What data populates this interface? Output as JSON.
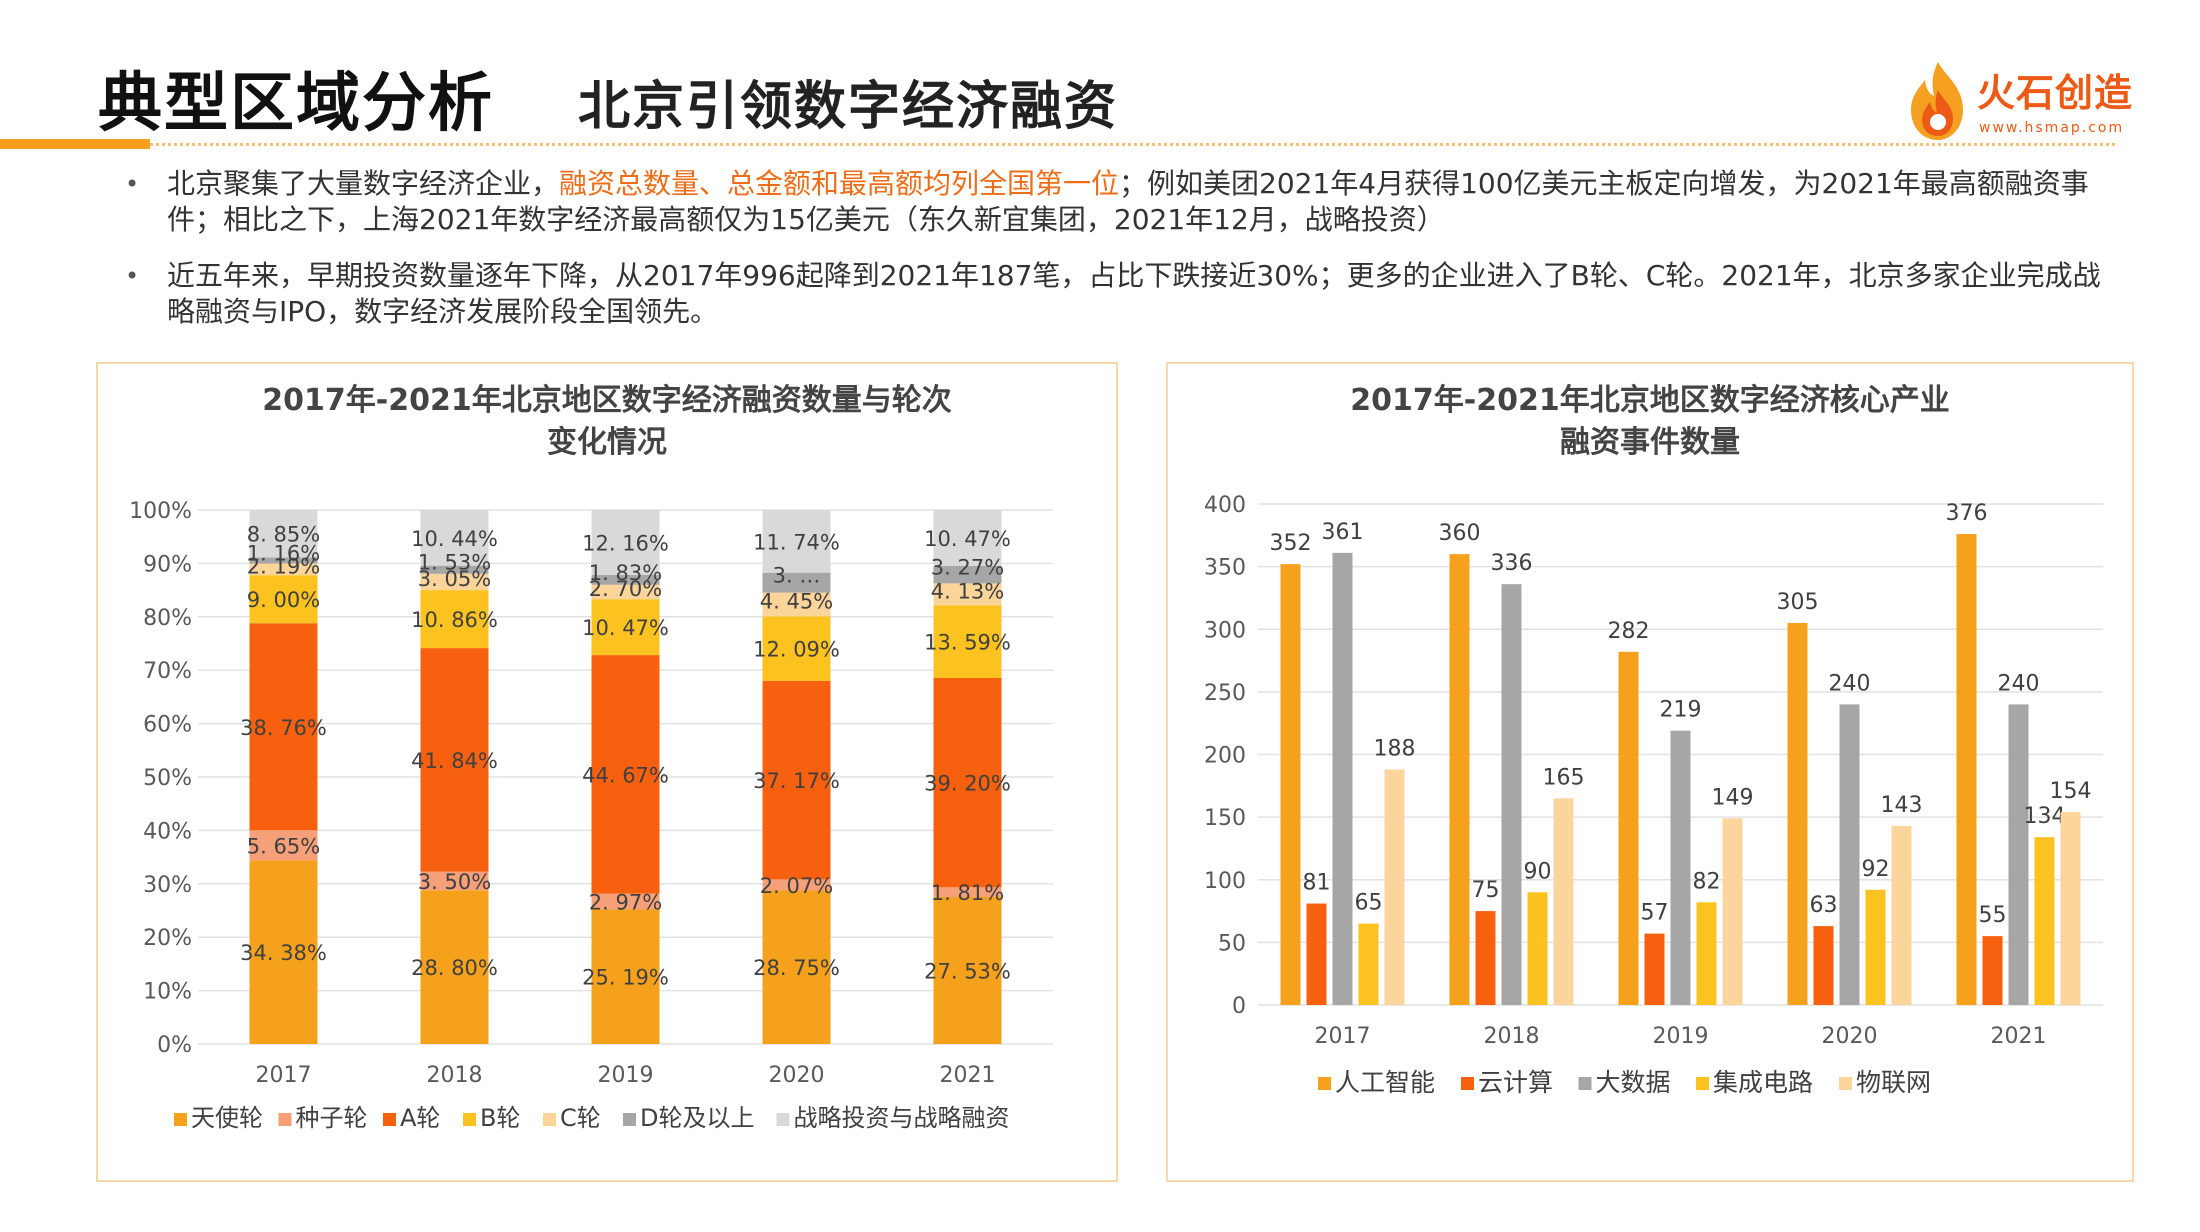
{
  "header": {
    "title": "典型区域分析",
    "subtitle": "北京引领数字经济融资"
  },
  "logo": {
    "name": "火石创造",
    "url": "www.hsmap.com"
  },
  "bullets": [
    {
      "pre": "北京聚集了大量数字经济企业，",
      "highlight": "融资总数量、总金额和最高额均列全国第一位",
      "post": "；例如美团2021年4月获得100亿美元主板定向增发，为2021年最高额融资事件；相比之下，上海2021年数字经济最高额仅为15亿美元（东久新宜集团，2021年12月，战略投资）"
    },
    {
      "pre": "近五年来，早期投资数量逐年下降，从2017年996起降到2021年187笔，占比下跌接近30%；更多的企业进入了B轮、C轮。2021年，北京多家企业完成战略融资与IPO，数字经济发展阶段全国领先。",
      "highlight": "",
      "post": ""
    }
  ],
  "colors": {
    "accent": "#f5a020",
    "天使轮": "#f5a11b",
    "种子轮": "#f6a07a",
    "A轮": "#f7600f",
    "B轮": "#fcc21f",
    "C轮": "#fbd49a",
    "D轮及以上": "#a6a6a6",
    "战略投资与战略融资": "#d9d9d9",
    "人工智能": "#f5a11b",
    "云计算": "#f7600f",
    "大数据": "#a6a6a6",
    "集成电路": "#fcc21f",
    "物联网": "#fcd59c"
  },
  "chart_data": [
    {
      "type": "bar",
      "stacked": true,
      "percent": true,
      "title": "2017年-2021年北京地区数字经济融资数量与轮次变化情况",
      "title_lines": [
        "2017年-2021年北京地区数字经济融资数量与轮次",
        "变化情况"
      ],
      "categories": [
        "2017",
        "2018",
        "2019",
        "2020",
        "2021"
      ],
      "y_ticks": [
        "0%",
        "10%",
        "20%",
        "30%",
        "40%",
        "50%",
        "60%",
        "70%",
        "80%",
        "90%",
        "100%"
      ],
      "ylim": [
        0,
        100
      ],
      "grid": true,
      "legend_position": "bottom",
      "series": [
        {
          "name": "天使轮",
          "values": [
            34.38,
            28.8,
            25.19,
            28.75,
            27.53
          ],
          "labels": [
            "34. 38%",
            "28. 80%",
            "25. 19%",
            "28. 75%",
            "27. 53%"
          ]
        },
        {
          "name": "种子轮",
          "values": [
            5.65,
            3.5,
            2.97,
            2.07,
            1.81
          ],
          "labels": [
            "5. 65%",
            "3. 50%",
            "2. 97%",
            "2. 07%",
            "1. 81%"
          ]
        },
        {
          "name": "A轮",
          "values": [
            38.76,
            41.84,
            44.67,
            37.17,
            39.2
          ],
          "labels": [
            "38. 76%",
            "41. 84%",
            "44. 67%",
            "37. 17%",
            "39. 20%"
          ]
        },
        {
          "name": "B轮",
          "values": [
            9.0,
            10.86,
            10.47,
            12.09,
            13.59
          ],
          "labels": [
            "9. 00%",
            "10. 86%",
            "10. 47%",
            "12. 09%",
            "13. 59%"
          ]
        },
        {
          "name": "C轮",
          "values": [
            2.19,
            3.05,
            2.7,
            4.45,
            4.13
          ],
          "labels": [
            "2. 19%",
            "3. 05%",
            "2. 70%",
            "4. 45%",
            "4. 13%"
          ]
        },
        {
          "name": "D轮及以上",
          "values": [
            1.16,
            1.53,
            1.83,
            3.74,
            3.27
          ],
          "labels": [
            "1. 16%",
            "1. 53%",
            "1. 83%",
            "3. …",
            "3. 27%"
          ]
        },
        {
          "name": "战略投资与战略融资",
          "values": [
            8.85,
            10.44,
            12.16,
            11.74,
            10.47
          ],
          "labels": [
            "8. 85%",
            "10. 44%",
            "12. 16%",
            "11. 74%",
            "10. 47%"
          ]
        }
      ]
    },
    {
      "type": "bar",
      "title": "2017年-2021年北京地区数字经济核心产业融资事件数量",
      "title_lines": [
        "2017年-2021年北京地区数字经济核心产业",
        "融资事件数量"
      ],
      "categories": [
        "2017",
        "2018",
        "2019",
        "2020",
        "2021"
      ],
      "ylim": [
        0,
        400
      ],
      "y_ticks": [
        "0",
        "50",
        "100",
        "150",
        "200",
        "250",
        "300",
        "350",
        "400"
      ],
      "grid": true,
      "legend_position": "bottom",
      "series": [
        {
          "name": "人工智能",
          "values": [
            352,
            360,
            282,
            305,
            376
          ]
        },
        {
          "name": "云计算",
          "values": [
            81,
            75,
            57,
            63,
            55
          ]
        },
        {
          "name": "大数据",
          "values": [
            361,
            336,
            219,
            240,
            240
          ]
        },
        {
          "name": "集成电路",
          "values": [
            65,
            90,
            82,
            92,
            134
          ]
        },
        {
          "name": "物联网",
          "values": [
            188,
            165,
            149,
            143,
            154
          ]
        }
      ]
    }
  ]
}
